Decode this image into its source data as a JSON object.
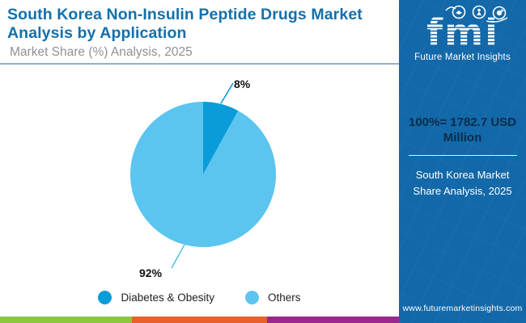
{
  "header": {
    "title": "South Korea Non-Insulin Peptide Drugs Market Analysis by Application",
    "subtitle": "Market Share (%) Analysis, 2025"
  },
  "chart_data": {
    "type": "pie",
    "categories": [
      "Diabetes & Obesity",
      "Others"
    ],
    "values": [
      8,
      92
    ],
    "labels": [
      "8%",
      "92%"
    ],
    "colors": [
      "#0a9cd8",
      "#5bc5f0"
    ],
    "title": "South Korea Non-Insulin Peptide Drugs Market Analysis by Application",
    "subtitle": "Market Share (%) Analysis, 2025",
    "legend_position": "bottom",
    "total_note": "100%= 1782.7 USD Million"
  },
  "legend": {
    "items": [
      {
        "label": "Diabetes & Obesity",
        "color": "#0a9cd8"
      },
      {
        "label": "Others",
        "color": "#5bc5f0"
      }
    ]
  },
  "sidebar": {
    "logo_text": "fmi",
    "logo_caption": "Future Market Insights",
    "stat": "100%= 1782.7 USD Million",
    "caption": "South Korea Market Share Analysis, 2025",
    "url": "www.futuremarketinsights.com",
    "bg_color": "#1268a8",
    "stat_text_color": "#0d2b4a",
    "logo_icons": [
      "handshake-icon",
      "person-flag-icon",
      "globe-plane-icon"
    ]
  },
  "footer": {
    "strip_colors": [
      "#8dc63f",
      "#e8602a",
      "#99278d"
    ]
  }
}
